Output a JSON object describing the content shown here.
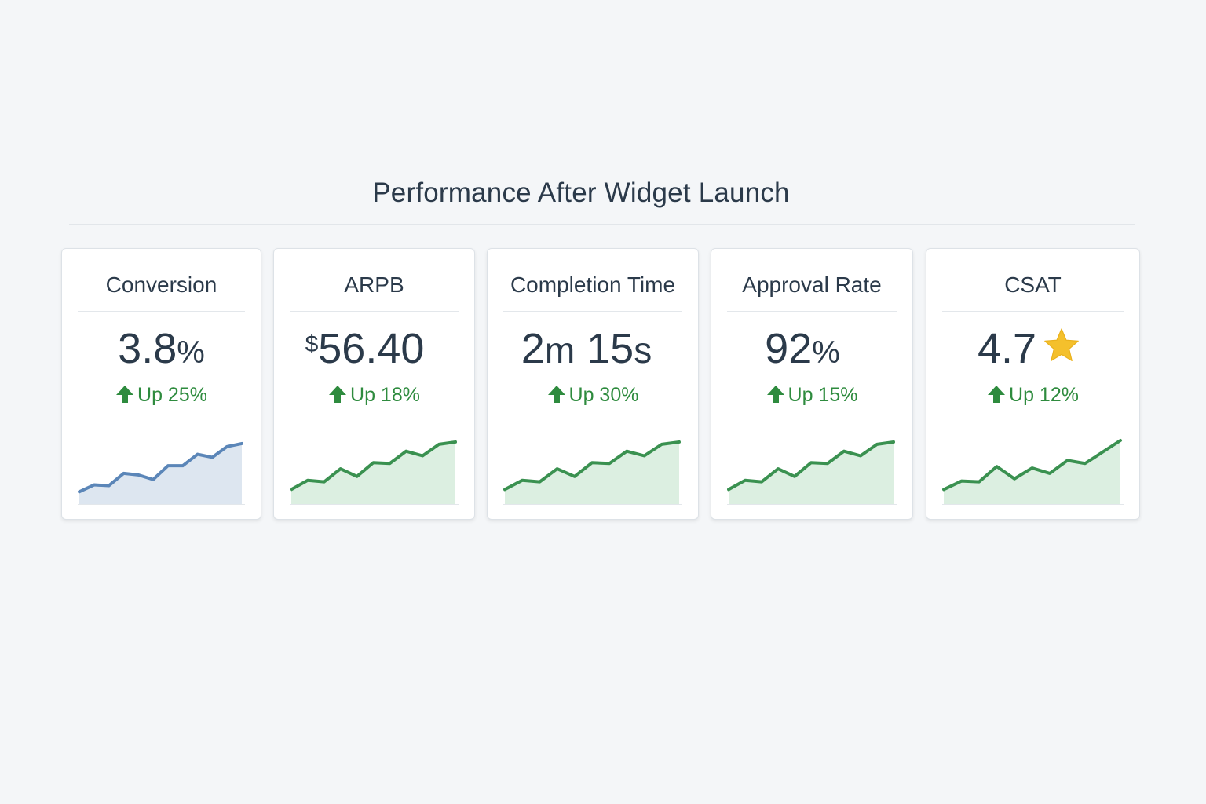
{
  "header": {
    "title": "Performance After Widget Launch"
  },
  "colors": {
    "text": "#2b3a4a",
    "up": "#2e8b3e",
    "blue_line": "#5b86b8",
    "blue_fill": "#dde6f0",
    "green_line": "#3a9150",
    "green_fill": "#dcefe1",
    "star": "#f4c02c"
  },
  "cards": [
    {
      "label": "Conversion",
      "value_main": "3.8",
      "value_unit": "%",
      "delta": "Up 25%",
      "trend_icon": "arrow-up-icon",
      "spark_color": "blue",
      "spark": [
        13,
        22,
        21,
        37,
        35,
        29,
        47,
        47,
        62,
        58,
        72,
        76
      ]
    },
    {
      "label": "ARPB",
      "value_prefix": "$",
      "value_main": "56.40",
      "delta": "Up 18%",
      "trend_icon": "arrow-up-icon",
      "spark_color": "green",
      "spark": [
        16,
        28,
        26,
        43,
        33,
        51,
        50,
        66,
        60,
        75,
        78
      ]
    },
    {
      "label": "Completion Time",
      "value_a": "2",
      "value_a_unit": "m",
      "value_b": " 15",
      "value_b_unit": "s",
      "delta": "Up 30%",
      "trend_icon": "arrow-up-icon",
      "spark_color": "green",
      "spark": [
        16,
        28,
        26,
        43,
        33,
        51,
        50,
        66,
        60,
        75,
        78
      ]
    },
    {
      "label": "Approval Rate",
      "value_main": "92",
      "value_unit": "%",
      "delta": "Up 15%",
      "trend_icon": "arrow-up-icon",
      "spark_color": "green",
      "spark": [
        16,
        28,
        26,
        43,
        33,
        51,
        50,
        66,
        60,
        75,
        78
      ]
    },
    {
      "label": "CSAT",
      "value_main": "4.7",
      "value_icon": "star-icon",
      "delta": "Up 12%",
      "trend_icon": "arrow-up-icon",
      "spark_color": "green",
      "spark": [
        16,
        27,
        26,
        46,
        30,
        44,
        37,
        54,
        50,
        65,
        80
      ]
    }
  ]
}
